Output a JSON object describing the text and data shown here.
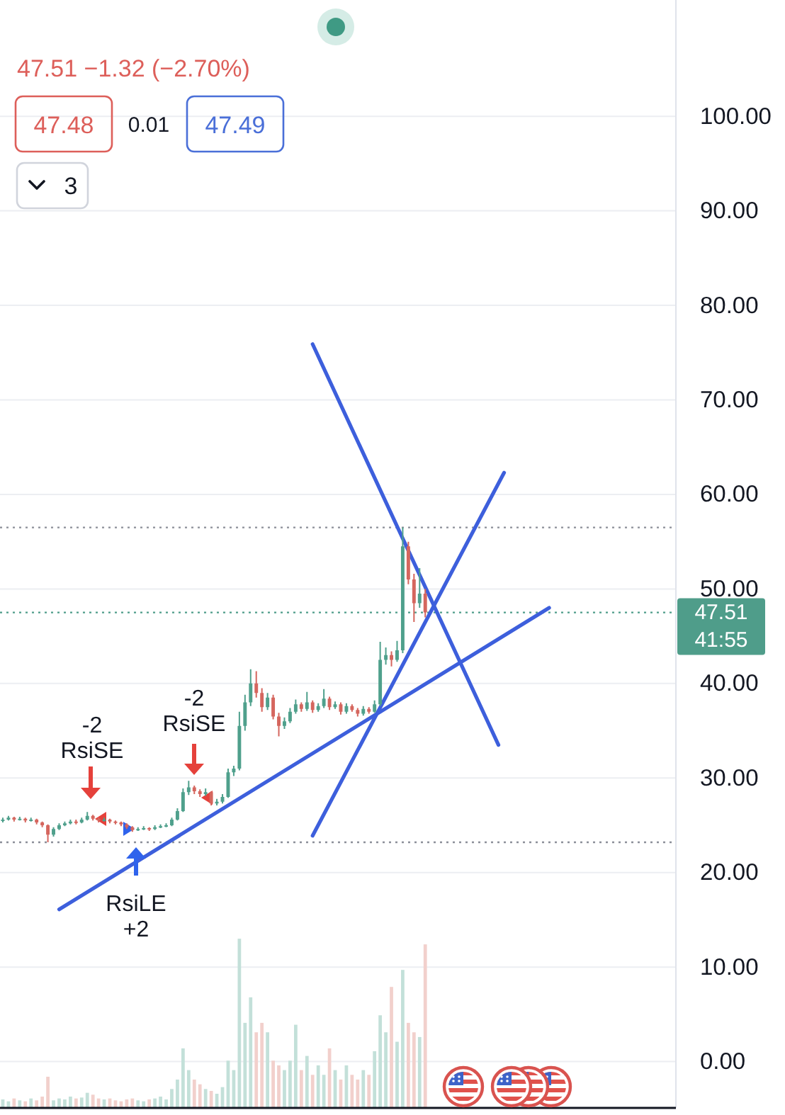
{
  "chart_data": {
    "type": "candlestick",
    "categories": [
      null,
      null,
      null,
      null,
      null,
      null,
      null,
      null,
      null,
      null,
      null,
      null,
      null,
      null,
      null,
      null,
      null,
      null,
      null,
      null,
      null,
      null,
      null,
      null,
      null,
      null,
      null,
      null,
      null,
      null,
      null,
      null,
      null,
      null,
      null,
      null,
      null,
      null,
      null,
      null,
      null,
      null,
      null,
      null,
      null,
      null,
      null,
      null,
      null,
      null,
      null,
      null,
      null,
      null,
      null,
      null,
      null,
      null,
      null,
      null,
      null,
      null,
      null,
      null,
      null,
      null,
      null,
      null,
      null,
      null,
      null,
      null,
      null,
      null,
      null,
      null,
      null,
      null,
      null,
      null,
      null,
      null,
      null,
      null,
      null,
      null,
      null,
      null,
      null,
      null,
      null,
      null,
      null,
      null,
      null,
      null,
      null,
      null,
      null,
      null,
      null,
      null,
      null,
      null,
      null,
      null,
      null,
      null,
      null,
      null,
      null,
      null,
      null,
      null,
      null,
      null,
      null,
      null,
      null,
      null
    ],
    "ohlc": [
      [
        25.5,
        25.8,
        25.3,
        25.6
      ],
      [
        25.6,
        26.0,
        25.5,
        25.8
      ],
      [
        25.8,
        25.9,
        25.4,
        25.6
      ],
      [
        25.6,
        25.9,
        25.5,
        25.7
      ],
      [
        25.7,
        25.8,
        25.3,
        25.5
      ],
      [
        25.5,
        25.8,
        25.4,
        25.6
      ],
      [
        25.6,
        25.7,
        25.1,
        25.3
      ],
      [
        25.3,
        25.4,
        24.8,
        25.0
      ],
      [
        25.0,
        25.1,
        23.2,
        24.0
      ],
      [
        24.0,
        24.8,
        23.8,
        24.6
      ],
      [
        24.6,
        25.2,
        24.5,
        25.0
      ],
      [
        25.0,
        25.4,
        24.9,
        25.2
      ],
      [
        25.2,
        25.6,
        25.1,
        25.4
      ],
      [
        25.4,
        25.6,
        25.1,
        25.3
      ],
      [
        25.3,
        25.8,
        25.2,
        25.6
      ],
      [
        25.6,
        26.4,
        25.5,
        26.0
      ],
      [
        26.0,
        26.1,
        25.5,
        25.7
      ],
      [
        25.7,
        25.8,
        25.3,
        25.5
      ],
      [
        25.5,
        25.8,
        25.4,
        25.6
      ],
      [
        25.6,
        25.7,
        25.2,
        25.4
      ],
      [
        25.4,
        25.5,
        25.1,
        25.3
      ],
      [
        25.3,
        25.4,
        24.9,
        25.1
      ],
      [
        25.1,
        25.2,
        24.6,
        24.8
      ],
      [
        24.8,
        24.9,
        24.3,
        24.5
      ],
      [
        24.5,
        24.8,
        24.4,
        24.6
      ],
      [
        24.6,
        24.9,
        24.5,
        24.7
      ],
      [
        24.7,
        24.8,
        24.4,
        24.6
      ],
      [
        24.6,
        25.0,
        24.5,
        24.8
      ],
      [
        24.8,
        25.1,
        24.7,
        24.9
      ],
      [
        24.9,
        25.2,
        24.8,
        25.0
      ],
      [
        25.0,
        25.8,
        24.9,
        25.6
      ],
      [
        25.6,
        26.8,
        25.5,
        26.5
      ],
      [
        26.5,
        28.9,
        26.4,
        28.5
      ],
      [
        28.5,
        29.7,
        28.2,
        29.0
      ],
      [
        29.0,
        29.2,
        28.3,
        28.6
      ],
      [
        28.6,
        28.8,
        28.0,
        28.3
      ],
      [
        28.3,
        28.9,
        28.1,
        28.5
      ],
      [
        28.5,
        28.6,
        27.1,
        27.3
      ],
      [
        27.3,
        27.8,
        27.1,
        27.5
      ],
      [
        27.5,
        28.3,
        27.3,
        28.0
      ],
      [
        28.0,
        31.0,
        27.9,
        30.6
      ],
      [
        30.6,
        31.3,
        30.2,
        31.0
      ],
      [
        31.0,
        37.0,
        30.8,
        35.5
      ],
      [
        35.5,
        38.8,
        35.0,
        38.0
      ],
      [
        38.0,
        41.5,
        37.6,
        40.0
      ],
      [
        40.0,
        41.3,
        38.5,
        39.0
      ],
      [
        39.0,
        39.5,
        37.0,
        37.5
      ],
      [
        37.5,
        39.0,
        37.2,
        38.5
      ],
      [
        38.5,
        38.8,
        36.2,
        36.5
      ],
      [
        36.5,
        36.9,
        34.4,
        35.5
      ],
      [
        35.5,
        36.4,
        35.2,
        36.0
      ],
      [
        36.0,
        37.4,
        35.8,
        37.0
      ],
      [
        37.0,
        38.3,
        36.8,
        37.8
      ],
      [
        37.8,
        38.0,
        37.0,
        37.3
      ],
      [
        37.3,
        39.1,
        37.1,
        38.0
      ],
      [
        38.0,
        38.2,
        36.9,
        37.2
      ],
      [
        37.2,
        37.9,
        37.0,
        37.6
      ],
      [
        37.6,
        39.4,
        37.4,
        38.4
      ],
      [
        38.4,
        38.6,
        37.2,
        37.5
      ],
      [
        37.5,
        38.1,
        37.3,
        37.8
      ],
      [
        37.8,
        38.0,
        36.7,
        37.0
      ],
      [
        37.0,
        37.9,
        36.8,
        37.6
      ],
      [
        37.6,
        37.8,
        37.0,
        37.2
      ],
      [
        37.2,
        37.4,
        36.5,
        36.8
      ],
      [
        36.8,
        37.6,
        36.6,
        37.3
      ],
      [
        37.3,
        37.5,
        36.8,
        37.0
      ],
      [
        37.0,
        38.2,
        36.9,
        37.8
      ],
      [
        37.8,
        44.4,
        37.6,
        42.5
      ],
      [
        42.5,
        43.8,
        42.0,
        43.0
      ],
      [
        43.0,
        43.4,
        41.8,
        42.5
      ],
      [
        42.5,
        44.5,
        42.3,
        43.5
      ],
      [
        43.5,
        56.5,
        43.2,
        54.5
      ],
      [
        54.5,
        55.0,
        50.5,
        51.0
      ],
      [
        51.0,
        51.6,
        46.5,
        48.5
      ],
      [
        48.5,
        52.2,
        48.0,
        49.5
      ],
      [
        49.5,
        50.0,
        47.0,
        47.51
      ],
      null,
      null,
      null,
      null,
      null,
      null,
      null,
      null,
      null,
      null,
      null,
      null,
      null,
      null,
      null,
      null,
      null,
      null,
      null,
      null,
      null,
      null,
      null,
      null,
      null,
      null,
      null,
      null,
      null,
      null,
      null,
      null,
      null,
      null,
      null,
      null,
      null,
      null,
      null,
      null,
      null,
      null,
      null,
      null
    ],
    "series": [
      {
        "type": "bar",
        "values": [
          0.9,
          0.7,
          1.0,
          0.8,
          0.7,
          1.0,
          0.8,
          1.2,
          3.3,
          0.8,
          1.0,
          0.9,
          1.2,
          1.0,
          1.1,
          1.6,
          1.4,
          1.0,
          0.9,
          1.0,
          0.8,
          0.7,
          0.9,
          1.0,
          0.8,
          0.7,
          0.9,
          1.0,
          1.2,
          0.9,
          2.0,
          3.0,
          6.3,
          4.0,
          3.0,
          2.5,
          2.0,
          1.8,
          1.5,
          2.2,
          5.0,
          4.0,
          17.9,
          9.0,
          11.7,
          8.0,
          9.0,
          8.0,
          5.0,
          4.5,
          4.0,
          5.0,
          8.8,
          4.0,
          5.5,
          3.5,
          4.5,
          3.5,
          6.3,
          4.0,
          3.0,
          4.5,
          3.5,
          3.0,
          4.0,
          3.5,
          6.0,
          9.8,
          8.0,
          12.8,
          7.0,
          14.6,
          9.0,
          8.0,
          7.5,
          17.3,
          null,
          null,
          null,
          null,
          null,
          null,
          null,
          null,
          null,
          null,
          null,
          null,
          null,
          null,
          null,
          null,
          null,
          null,
          null,
          null,
          null,
          null,
          null,
          null,
          null,
          null,
          null,
          null,
          null,
          null,
          null,
          null,
          null,
          null,
          null,
          null,
          null,
          null,
          null,
          null,
          null,
          null,
          null,
          null
        ],
        "colors": [
          "#c3e0d9",
          "#c3e0d9",
          "#f2d0cc",
          "#c3e0d9",
          "#f2d0cc",
          "#c3e0d9",
          "#f2d0cc",
          "#f2d0cc",
          "#f2d0cc",
          "#c3e0d9",
          "#c3e0d9",
          "#c3e0d9",
          "#c3e0d9",
          "#f2d0cc",
          "#c3e0d9",
          "#c3e0d9",
          "#f2d0cc",
          "#f2d0cc",
          "#c3e0d9",
          "#f2d0cc",
          "#f2d0cc",
          "#f2d0cc",
          "#f2d0cc",
          "#f2d0cc",
          "#c3e0d9",
          "#c3e0d9",
          "#f2d0cc",
          "#c3e0d9",
          "#c3e0d9",
          "#c3e0d9",
          "#c3e0d9",
          "#c3e0d9",
          "#c3e0d9",
          "#c3e0d9",
          "#f2d0cc",
          "#f2d0cc",
          "#c3e0d9",
          "#f2d0cc",
          "#c3e0d9",
          "#c3e0d9",
          "#c3e0d9",
          "#c3e0d9",
          "#c3e0d9",
          "#c3e0d9",
          "#c3e0d9",
          "#f2d0cc",
          "#f2d0cc",
          "#c3e0d9",
          "#f2d0cc",
          "#f2d0cc",
          "#c3e0d9",
          "#c3e0d9",
          "#c3e0d9",
          "#f2d0cc",
          "#c3e0d9",
          "#f2d0cc",
          "#c3e0d9",
          "#c3e0d9",
          "#f2d0cc",
          "#c3e0d9",
          "#f2d0cc",
          "#c3e0d9",
          "#f2d0cc",
          "#f2d0cc",
          "#c3e0d9",
          "#f2d0cc",
          "#c3e0d9",
          "#c3e0d9",
          "#c3e0d9",
          "#f2d0cc",
          "#c3e0d9",
          "#c3e0d9",
          "#f2d0cc",
          "#f2d0cc",
          "#c3e0d9",
          "#f2d0cc",
          null,
          null,
          null,
          null,
          null,
          null,
          null,
          null,
          null,
          null,
          null,
          null,
          null,
          null,
          null,
          null,
          null,
          null,
          null,
          null,
          null,
          null,
          null,
          null,
          null,
          null,
          null,
          null,
          null,
          null,
          null,
          null,
          null,
          null,
          null,
          null,
          null,
          null,
          null,
          null,
          null,
          null,
          null,
          null
        ],
        "base": [
          -4.9,
          -4.9,
          -4.9,
          -4.9,
          -4.9,
          -4.9,
          -4.9,
          -4.9,
          -4.9,
          -4.9,
          -4.9,
          -4.9,
          -4.9,
          -4.9,
          -4.9,
          -4.9,
          -4.9,
          -4.9,
          -4.9,
          -4.9,
          -4.9,
          -4.9,
          -4.9,
          -4.9,
          -4.9,
          -4.9,
          -4.9,
          -4.9,
          -4.9,
          -4.9,
          -4.9,
          -4.9,
          -4.9,
          -4.9,
          -4.9,
          -4.9,
          -4.9,
          -4.9,
          -4.9,
          -4.9,
          -4.9,
          -4.9,
          -4.9,
          -4.9,
          -4.9,
          -4.9,
          -4.9,
          -4.9,
          -4.9,
          -4.9,
          -4.9,
          -4.9,
          -4.9,
          -4.9,
          -4.9,
          -4.9,
          -4.9,
          -4.9,
          -4.9,
          -4.9,
          -4.9,
          -4.9,
          -4.9,
          -4.9,
          -4.9,
          -4.9,
          -4.9,
          -4.9,
          -4.9,
          -4.9,
          -4.9,
          -4.9,
          -4.9,
          -4.9,
          -4.9,
          -4.9,
          null,
          null,
          null,
          null,
          null,
          null,
          null,
          null,
          null,
          null,
          null,
          null,
          null,
          null,
          null,
          null,
          null,
          null,
          null,
          null,
          null,
          null,
          null,
          null,
          null,
          null,
          null,
          null,
          null,
          null,
          null,
          null,
          null,
          null,
          null,
          null,
          null,
          null,
          null,
          null,
          null,
          null,
          null,
          null
        ]
      },
      {
        "type": "line",
        "color": "#3d5fdc",
        "values": [
          null,
          null,
          null,
          null,
          null,
          null,
          null,
          null,
          null,
          null,
          16.1,
          null,
          null,
          null,
          null,
          null,
          null,
          null,
          null,
          null,
          null,
          null,
          null,
          null,
          null,
          null,
          null,
          null,
          null,
          null,
          null,
          null,
          null,
          null,
          null,
          null,
          null,
          null,
          null,
          null,
          null,
          null,
          null,
          null,
          null,
          null,
          null,
          null,
          null,
          null,
          null,
          null,
          null,
          null,
          null,
          null,
          null,
          null,
          null,
          null,
          null,
          null,
          null,
          null,
          null,
          null,
          null,
          null,
          null,
          null,
          null,
          null,
          null,
          null,
          null,
          null,
          null,
          null,
          null,
          null,
          null,
          null,
          null,
          null,
          null,
          null,
          null,
          null,
          null,
          null,
          null,
          null,
          null,
          null,
          null,
          null,
          null,
          48.0,
          null,
          null,
          null,
          null,
          null,
          null,
          null,
          null,
          null,
          null,
          null,
          null,
          null,
          null,
          null,
          null,
          null,
          null,
          null,
          null,
          null,
          null
        ]
      },
      {
        "type": "line",
        "color": "#3d5fdc",
        "values": [
          null,
          null,
          null,
          null,
          null,
          null,
          null,
          null,
          null,
          null,
          null,
          null,
          null,
          null,
          null,
          null,
          null,
          null,
          null,
          null,
          null,
          null,
          null,
          null,
          null,
          null,
          null,
          null,
          null,
          null,
          null,
          null,
          null,
          null,
          null,
          null,
          null,
          null,
          null,
          null,
          null,
          null,
          null,
          null,
          null,
          null,
          null,
          null,
          null,
          null,
          null,
          null,
          null,
          null,
          null,
          23.9,
          null,
          null,
          null,
          null,
          null,
          null,
          null,
          null,
          null,
          null,
          null,
          null,
          null,
          null,
          null,
          null,
          null,
          null,
          null,
          null,
          null,
          null,
          null,
          null,
          null,
          null,
          null,
          null,
          null,
          null,
          null,
          null,
          null,
          62.3,
          null,
          null,
          null,
          null,
          null,
          null,
          null,
          null,
          null,
          null,
          null,
          null,
          null,
          null,
          null,
          null,
          null,
          null,
          null,
          null,
          null,
          null,
          null,
          null,
          null,
          null,
          null,
          null,
          null,
          null
        ]
      },
      {
        "type": "line",
        "color": "#3d5fdc",
        "values": [
          null,
          null,
          null,
          null,
          null,
          null,
          null,
          null,
          null,
          null,
          null,
          null,
          null,
          null,
          null,
          null,
          null,
          null,
          null,
          null,
          null,
          null,
          null,
          null,
          null,
          null,
          null,
          null,
          null,
          null,
          null,
          null,
          null,
          null,
          null,
          null,
          null,
          null,
          null,
          null,
          null,
          null,
          null,
          null,
          null,
          null,
          null,
          null,
          null,
          null,
          null,
          null,
          null,
          null,
          null,
          75.9,
          null,
          null,
          null,
          null,
          null,
          null,
          null,
          null,
          null,
          null,
          null,
          null,
          null,
          null,
          null,
          null,
          null,
          null,
          null,
          null,
          null,
          null,
          null,
          null,
          null,
          null,
          null,
          null,
          null,
          null,
          null,
          null,
          33.5,
          null,
          null,
          null,
          null,
          null,
          null,
          null,
          null,
          null,
          null,
          null,
          null,
          null,
          null,
          null,
          null,
          null,
          null,
          null,
          null,
          null,
          null,
          null,
          null,
          null,
          null,
          null,
          null,
          null,
          null,
          null
        ]
      }
    ],
    "ylim": [
      -4.9,
      112.3
    ],
    "yticks": [
      {
        "value": 0,
        "label": "0.00"
      },
      {
        "value": 10,
        "label": "10.00"
      },
      {
        "value": 20,
        "label": "20.00"
      },
      {
        "value": 30,
        "label": "30.00"
      },
      {
        "value": 40,
        "label": "40.00"
      },
      {
        "value": 50,
        "label": "50.00"
      },
      {
        "value": 60,
        "label": "60.00"
      },
      {
        "value": 70,
        "label": "70.00"
      },
      {
        "value": 80,
        "label": "80.00"
      },
      {
        "value": 90,
        "label": "90.00"
      },
      {
        "value": 100,
        "label": "100.00"
      }
    ],
    "grid": "y",
    "tick_labels": "y",
    "ref_lines": [
      {
        "axis": "y",
        "value": 56.5,
        "color": "#8c8f99",
        "line_style": "dotted"
      },
      {
        "axis": "y",
        "value": 23.2,
        "color": "#8c8f99",
        "line_style": "dotted"
      },
      {
        "axis": "y",
        "value": 47.51,
        "label": "47.51",
        "color": "#4f9d8a",
        "line_style": "dotted"
      }
    ],
    "annotations": [
      "47.51 −1.32 (−2.70%)",
      "47.48",
      "0.01",
      "47.49",
      "3",
      "-2\nRsiSE",
      "-2\nRsiSE",
      "RsiLE\n+2",
      "41:55"
    ]
  }
}
